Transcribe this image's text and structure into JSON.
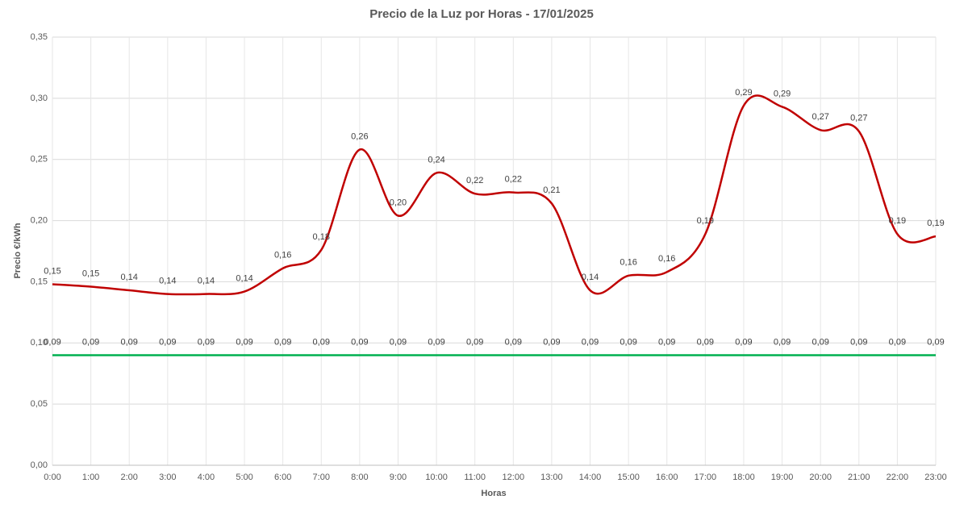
{
  "chart_data": {
    "type": "line",
    "title": "Precio de la Luz por Horas - 17/01/2025",
    "x_label": "Horas",
    "y_label": "Precio €/kWh",
    "categories": [
      "0:00",
      "1:00",
      "2:00",
      "3:00",
      "4:00",
      "5:00",
      "6:00",
      "7:00",
      "8:00",
      "9:00",
      "10:00",
      "11:00",
      "12:00",
      "13:00",
      "14:00",
      "15:00",
      "16:00",
      "17:00",
      "18:00",
      "19:00",
      "20:00",
      "21:00",
      "22:00",
      "23:00"
    ],
    "series": [
      {
        "color": "#c00000",
        "smooth": true,
        "values": [
          0.148,
          0.146,
          0.143,
          0.14,
          0.14,
          0.142,
          0.161,
          0.176,
          0.258,
          0.204,
          0.239,
          0.222,
          0.223,
          0.214,
          0.143,
          0.155,
          0.158,
          0.189,
          0.294,
          0.293,
          0.274,
          0.273,
          0.189,
          0.187
        ],
        "value_labels": [
          "0,15",
          "0,15",
          "0,14",
          "0,14",
          "0,14",
          "0,14",
          "0,16",
          "0,18",
          "0,26",
          "0,20",
          "0,24",
          "0,22",
          "0,22",
          "0,21",
          "0,14",
          "0,16",
          "0,16",
          "0,19",
          "0,29",
          "0,29",
          "0,27",
          "0,27",
          "0,19",
          "0,19"
        ]
      },
      {
        "color": "#00b050",
        "smooth": false,
        "values": [
          0.09,
          0.09,
          0.09,
          0.09,
          0.09,
          0.09,
          0.09,
          0.09,
          0.09,
          0.09,
          0.09,
          0.09,
          0.09,
          0.09,
          0.09,
          0.09,
          0.09,
          0.09,
          0.09,
          0.09,
          0.09,
          0.09,
          0.09,
          0.09
        ],
        "value_labels": [
          "0,09",
          "0,09",
          "0,09",
          "0,09",
          "0,09",
          "0,09",
          "0,09",
          "0,09",
          "0,09",
          "0,09",
          "0,09",
          "0,09",
          "0,09",
          "0,09",
          "0,09",
          "0,09",
          "0,09",
          "0,09",
          "0,09",
          "0,09",
          "0,09",
          "0,09",
          "0,09",
          "0,09"
        ]
      }
    ],
    "ylim": [
      0,
      0.35
    ],
    "yticks": [
      {
        "value": 0,
        "label": "0,00"
      },
      {
        "value": 0.05,
        "label": "0,05"
      },
      {
        "value": 0.1,
        "label": "0,10"
      },
      {
        "value": 0.15,
        "label": "0,15"
      },
      {
        "value": 0.2,
        "label": "0,20"
      },
      {
        "value": 0.25,
        "label": "0,25"
      },
      {
        "value": 0.3,
        "label": "0,30"
      },
      {
        "value": 0.35,
        "label": "0,35"
      }
    ],
    "grid": true
  }
}
